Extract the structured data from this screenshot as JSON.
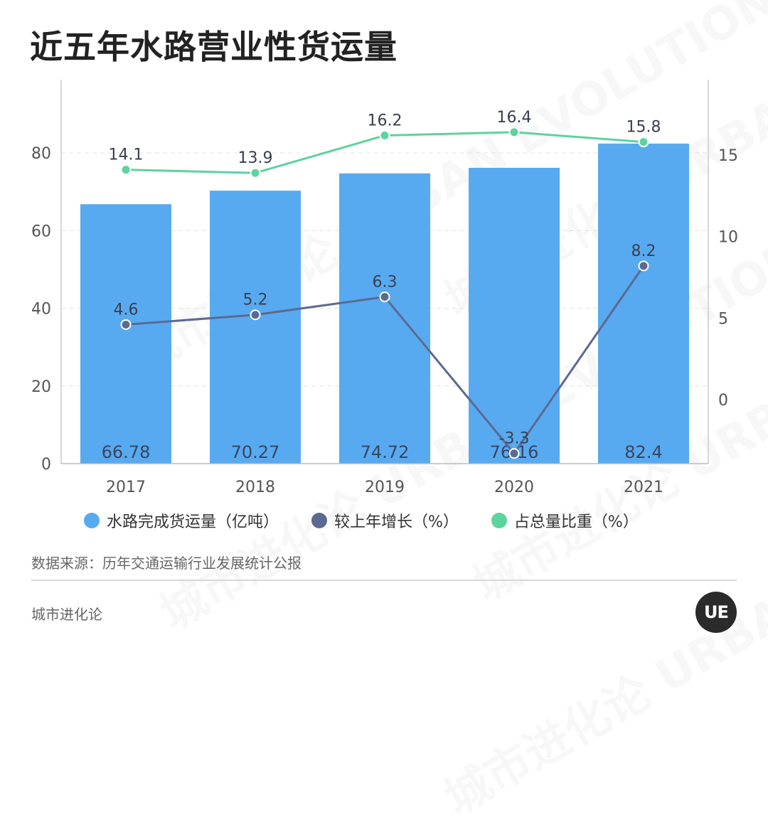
{
  "title": "近五年水路营业性货运量",
  "source": "数据来源：历年交通运输行业发展统计公报",
  "brand": "城市进化论",
  "logo_text": "UE",
  "watermark": "城市进化论 URBAN EVOLUTION",
  "colors": {
    "bar": "#58aaf0",
    "growth": "#5b6a91",
    "share": "#5dd39e",
    "axis_text": "#555555",
    "grid": "#e0e0e0"
  },
  "chart_data": {
    "type": "bar",
    "categories": [
      "2017",
      "2018",
      "2019",
      "2020",
      "2021"
    ],
    "ylim_left": [
      0,
      80
    ],
    "left_ticks": [
      "0",
      "20",
      "40",
      "60",
      "80"
    ],
    "ylim_right": [
      0,
      15
    ],
    "right_ticks": [
      "0",
      "5",
      "10",
      "15"
    ],
    "grid": true,
    "legend_position": "bottom",
    "series": [
      {
        "name": "水路完成货运量（亿吨）",
        "type": "bar",
        "axis": "left",
        "values": [
          66.78,
          70.27,
          74.72,
          76.16,
          82.4
        ],
        "labels": [
          "66.78",
          "70.27",
          "74.72",
          "76.16",
          "82.4"
        ]
      },
      {
        "name": "较上年增长（%）",
        "type": "line",
        "axis": "right",
        "values": [
          4.6,
          5.2,
          6.3,
          -3.3,
          8.2
        ],
        "labels": [
          "4.6",
          "5.2",
          "6.3",
          "-3.3",
          "8.2"
        ]
      },
      {
        "name": "占总量比重（%）",
        "type": "line",
        "axis": "right",
        "values": [
          14.1,
          13.9,
          16.2,
          16.4,
          15.8
        ],
        "labels": [
          "14.1",
          "13.9",
          "16.2",
          "16.4",
          "15.8"
        ]
      }
    ]
  }
}
